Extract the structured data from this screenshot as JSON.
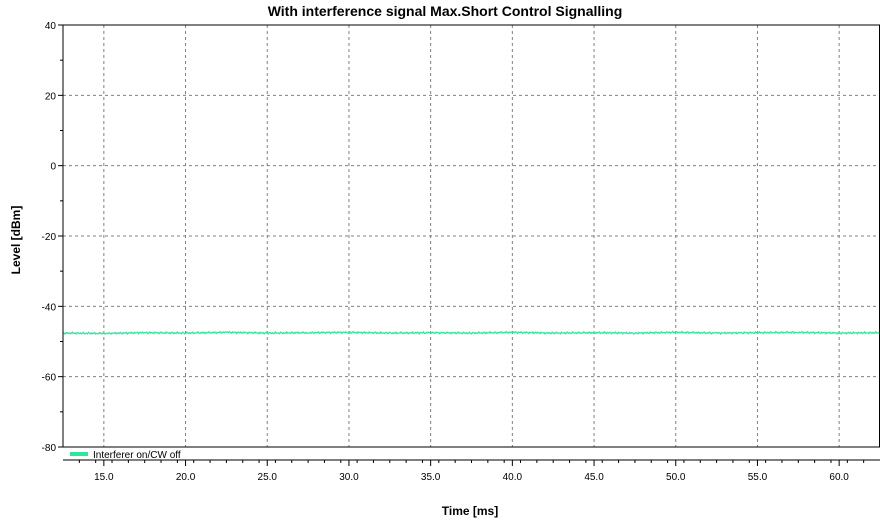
{
  "chart_data": {
    "type": "line",
    "title": "With interference signal Max.Short Control Signalling",
    "xlabel": "Time [ms]",
    "ylabel": "Level [dBm]",
    "xlim": [
      12.5,
      62.5
    ],
    "ylim": [
      -80,
      40
    ],
    "x_ticks": [
      15.0,
      20.0,
      25.0,
      30.0,
      35.0,
      40.0,
      45.0,
      50.0,
      55.0,
      60.0
    ],
    "x_tick_labels": [
      "15.0",
      "20.0",
      "25.0",
      "30.0",
      "35.0",
      "40.0",
      "45.0",
      "50.0",
      "55.0",
      "60.0"
    ],
    "y_ticks": [
      40,
      20,
      0,
      -20,
      -40,
      -60,
      -80
    ],
    "y_tick_labels": [
      "40",
      "20",
      "0",
      "-20",
      "-40",
      "-60",
      "-80"
    ],
    "grid": true,
    "legend_position": "bottom-left",
    "series": [
      {
        "name": "Interferer on/CW off",
        "color": "#2ee89a",
        "x": [
          12.5,
          15.0,
          17.5,
          20.0,
          22.5,
          25.0,
          27.5,
          30.0,
          32.5,
          35.0,
          37.5,
          40.0,
          42.5,
          45.0,
          47.5,
          50.0,
          52.5,
          55.0,
          57.5,
          60.0,
          62.5
        ],
        "y": [
          -47.6,
          -47.7,
          -47.5,
          -47.6,
          -47.4,
          -47.6,
          -47.5,
          -47.4,
          -47.6,
          -47.5,
          -47.6,
          -47.4,
          -47.6,
          -47.5,
          -47.6,
          -47.4,
          -47.6,
          -47.5,
          -47.4,
          -47.6,
          -47.5
        ]
      }
    ]
  }
}
